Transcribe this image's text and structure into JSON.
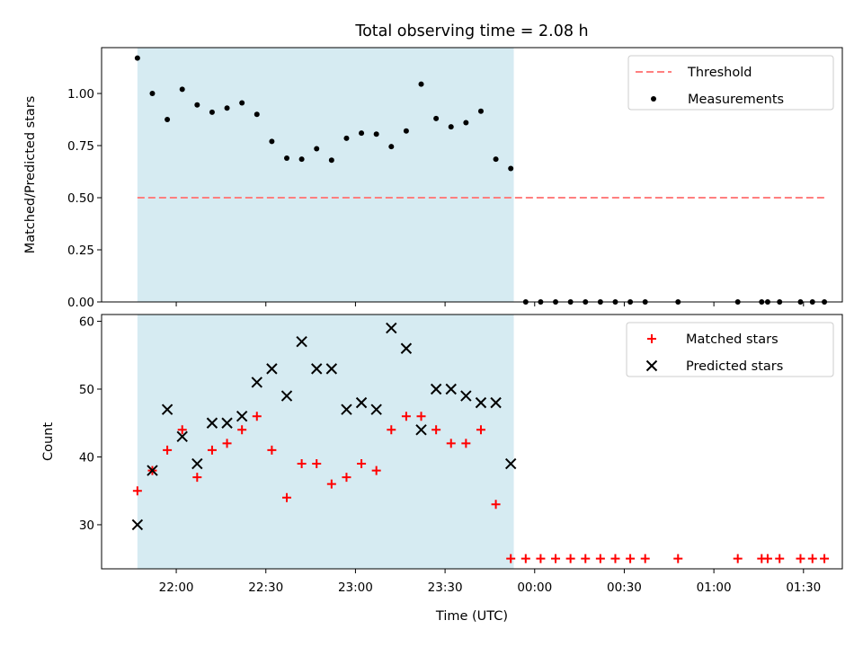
{
  "chart_data": [
    {
      "type": "scatter",
      "panel": "top",
      "title": "Total observing time = 2.08 h",
      "xlabel": "",
      "ylabel": "Matched/Predicted stars",
      "ylim": [
        0,
        1.22
      ],
      "yticks": [
        "0.00",
        "0.25",
        "0.50",
        "0.75",
        "1.00"
      ],
      "grid": false,
      "legend": {
        "position": "top-right",
        "entries": [
          "Threshold",
          "Measurements"
        ]
      },
      "shaded_region": {
        "x_start": "21:47",
        "x_end": "23:53",
        "color": "#add8e6"
      },
      "threshold": {
        "name": "Threshold",
        "value": 0.5,
        "x_start": "21:47",
        "x_end": "01:37",
        "color": "#ff7f7f"
      },
      "series": [
        {
          "name": "Measurements",
          "color": "#000000",
          "x": [
            "21:47",
            "21:52",
            "21:57",
            "22:02",
            "22:07",
            "22:12",
            "22:17",
            "22:22",
            "22:27",
            "22:32",
            "22:37",
            "22:42",
            "22:47",
            "22:52",
            "22:57",
            "23:02",
            "23:07",
            "23:12",
            "23:17",
            "23:22",
            "23:27",
            "23:32",
            "23:37",
            "23:42",
            "23:47",
            "23:52",
            "23:57",
            "00:02",
            "00:07",
            "00:12",
            "00:17",
            "00:22",
            "00:27",
            "00:32",
            "00:37",
            "00:48",
            "01:08",
            "01:16",
            "01:18",
            "01:22",
            "01:29",
            "01:33",
            "01:37"
          ],
          "values": [
            1.17,
            1.0,
            0.875,
            1.02,
            0.945,
            0.91,
            0.93,
            0.955,
            0.9,
            0.77,
            0.69,
            0.685,
            0.735,
            0.68,
            0.785,
            0.81,
            0.805,
            0.745,
            0.82,
            1.045,
            0.88,
            0.84,
            0.86,
            0.915,
            0.685,
            0.64,
            0,
            0,
            0,
            0,
            0,
            0,
            0,
            0,
            0,
            0,
            0,
            0,
            0,
            0,
            0,
            0,
            0
          ]
        }
      ]
    },
    {
      "type": "scatter",
      "panel": "bottom",
      "xlabel": "Time (UTC)",
      "ylabel": "Count",
      "ylim": [
        23.5,
        61
      ],
      "yticks": [
        "30",
        "40",
        "50",
        "60"
      ],
      "xlim": [
        "21:35",
        "01:43"
      ],
      "xticks": [
        "22:00",
        "22:30",
        "23:00",
        "23:30",
        "00:00",
        "00:30",
        "01:00",
        "01:30"
      ],
      "grid": false,
      "legend": {
        "position": "top-right",
        "entries": [
          "Matched stars",
          "Predicted stars"
        ]
      },
      "shaded_region": {
        "x_start": "21:47",
        "x_end": "23:53",
        "color": "#add8e6"
      },
      "series": [
        {
          "name": "Matched stars",
          "marker": "plus",
          "color": "#ff0000",
          "x": [
            "21:47",
            "21:52",
            "21:57",
            "22:02",
            "22:07",
            "22:12",
            "22:17",
            "22:22",
            "22:27",
            "22:32",
            "22:37",
            "22:42",
            "22:47",
            "22:52",
            "22:57",
            "23:02",
            "23:07",
            "23:12",
            "23:17",
            "23:22",
            "23:27",
            "23:32",
            "23:37",
            "23:42",
            "23:47",
            "23:52",
            "23:57",
            "00:02",
            "00:07",
            "00:12",
            "00:17",
            "00:22",
            "00:27",
            "00:32",
            "00:37",
            "00:48",
            "01:08",
            "01:16",
            "01:18",
            "01:22",
            "01:29",
            "01:33",
            "01:37"
          ],
          "values": [
            35,
            38,
            41,
            44,
            37,
            41,
            42,
            44,
            46,
            41,
            34,
            39,
            39,
            36,
            37,
            39,
            38,
            44,
            46,
            46,
            44,
            42,
            42,
            44,
            33,
            25,
            25,
            25,
            25,
            25,
            25,
            25,
            25,
            25,
            25,
            25,
            25,
            25,
            25,
            25,
            25,
            25,
            25
          ]
        },
        {
          "name": "Predicted stars",
          "marker": "x",
          "color": "#000000",
          "x": [
            "21:47",
            "21:52",
            "21:57",
            "22:02",
            "22:07",
            "22:12",
            "22:17",
            "22:22",
            "22:27",
            "22:32",
            "22:37",
            "22:42",
            "22:47",
            "22:52",
            "22:57",
            "23:02",
            "23:07",
            "23:12",
            "23:17",
            "23:22",
            "23:27",
            "23:32",
            "23:37",
            "23:42",
            "23:47",
            "23:52"
          ],
          "values": [
            30,
            38,
            47,
            43,
            39,
            45,
            45,
            46,
            51,
            53,
            49,
            57,
            53,
            53,
            47,
            48,
            47,
            59,
            56,
            44,
            50,
            50,
            49,
            48,
            48,
            39
          ]
        }
      ]
    }
  ]
}
